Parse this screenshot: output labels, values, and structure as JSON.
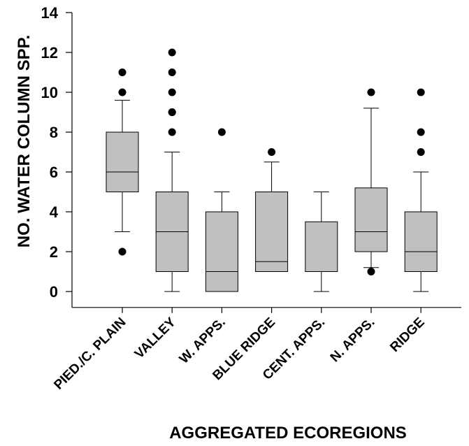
{
  "chart_data": {
    "type": "box",
    "title": "",
    "xlabel": "AGGREGATED ECOREGIONS",
    "ylabel": "NO. WATER COLUMN SPP.",
    "ylim": [
      -0.8,
      14
    ],
    "yticks": [
      0,
      2,
      4,
      6,
      8,
      10,
      12,
      14
    ],
    "grid": false,
    "legend": "none",
    "box_fill": "#c0c0c0",
    "categories": [
      "PIED./C. PLAIN",
      "VALLEY",
      "W. APPS.",
      "BLUE RIDGE",
      "CENT. APPS.",
      "N. APPS.",
      "RIDGE"
    ],
    "boxes": [
      {
        "category": "PIED./C. PLAIN",
        "whisker_low": 3,
        "q1": 5,
        "median": 6,
        "q3": 8,
        "whisker_high": 9.6,
        "outliers": [
          2,
          10,
          11
        ]
      },
      {
        "category": "VALLEY",
        "whisker_low": 0,
        "q1": 1,
        "median": 3,
        "q3": 5,
        "whisker_high": 7,
        "outliers": [
          8,
          9,
          9,
          10,
          11,
          12
        ]
      },
      {
        "category": "W. APPS.",
        "whisker_low": 0,
        "q1": 0,
        "median": 1,
        "q3": 4,
        "whisker_high": 5,
        "outliers": [
          8
        ]
      },
      {
        "category": "BLUE RIDGE",
        "whisker_low": 1,
        "q1": 1,
        "median": 1.5,
        "q3": 5,
        "whisker_high": 6.5,
        "outliers": [
          7
        ]
      },
      {
        "category": "CENT. APPS.",
        "whisker_low": 0,
        "q1": 1,
        "median": 1,
        "q3": 3.5,
        "whisker_high": 5,
        "outliers": []
      },
      {
        "category": "N. APPS.",
        "whisker_low": 1.2,
        "q1": 2,
        "median": 3,
        "q3": 5.2,
        "whisker_high": 9.2,
        "outliers": [
          1,
          10
        ]
      },
      {
        "category": "RIDGE",
        "whisker_low": 0,
        "q1": 1,
        "median": 2,
        "q3": 4,
        "whisker_high": 6,
        "outliers": [
          7,
          8,
          10
        ]
      }
    ]
  }
}
